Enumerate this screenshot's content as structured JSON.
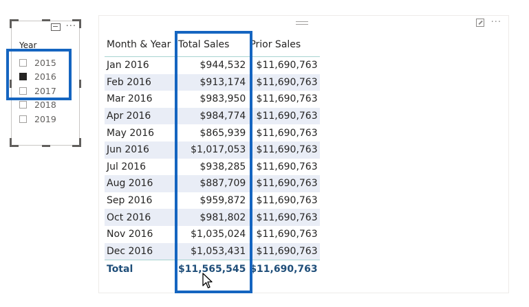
{
  "slicer": {
    "title": "Year",
    "items": [
      {
        "label": "2015",
        "checked": false
      },
      {
        "label": "2016",
        "checked": true
      },
      {
        "label": "2017",
        "checked": false
      },
      {
        "label": "2018",
        "checked": false
      },
      {
        "label": "2019",
        "checked": false
      }
    ],
    "focus_icon": "focus-mode-icon",
    "more_icon": "more-options-icon"
  },
  "table": {
    "columns": [
      "Month & Year",
      "Total Sales",
      "Prior Sales"
    ],
    "rows": [
      [
        "Jan 2016",
        "$944,532",
        "$11,690,763"
      ],
      [
        "Feb 2016",
        "$913,174",
        "$11,690,763"
      ],
      [
        "Mar 2016",
        "$983,950",
        "$11,690,763"
      ],
      [
        "Apr 2016",
        "$984,774",
        "$11,690,763"
      ],
      [
        "May 2016",
        "$865,939",
        "$11,690,763"
      ],
      [
        "Jun 2016",
        "$1,017,053",
        "$11,690,763"
      ],
      [
        "Jul 2016",
        "$938,285",
        "$11,690,763"
      ],
      [
        "Aug 2016",
        "$887,709",
        "$11,690,763"
      ],
      [
        "Sep 2016",
        "$959,872",
        "$11,690,763"
      ],
      [
        "Oct 2016",
        "$981,802",
        "$11,690,763"
      ],
      [
        "Nov 2016",
        "$1,035,024",
        "$11,690,763"
      ],
      [
        "Dec 2016",
        "$1,053,431",
        "$11,690,763"
      ]
    ],
    "total": [
      "Total",
      "$11,565,545",
      "$11,690,763"
    ],
    "expand_icon": "focus-mode-icon",
    "more_icon": "more-options-icon"
  },
  "colors": {
    "highlight": "#1565c0",
    "row_band": "#e9edf6",
    "header_rule": "#a6d4d0",
    "total_text": "#1f4e79"
  }
}
